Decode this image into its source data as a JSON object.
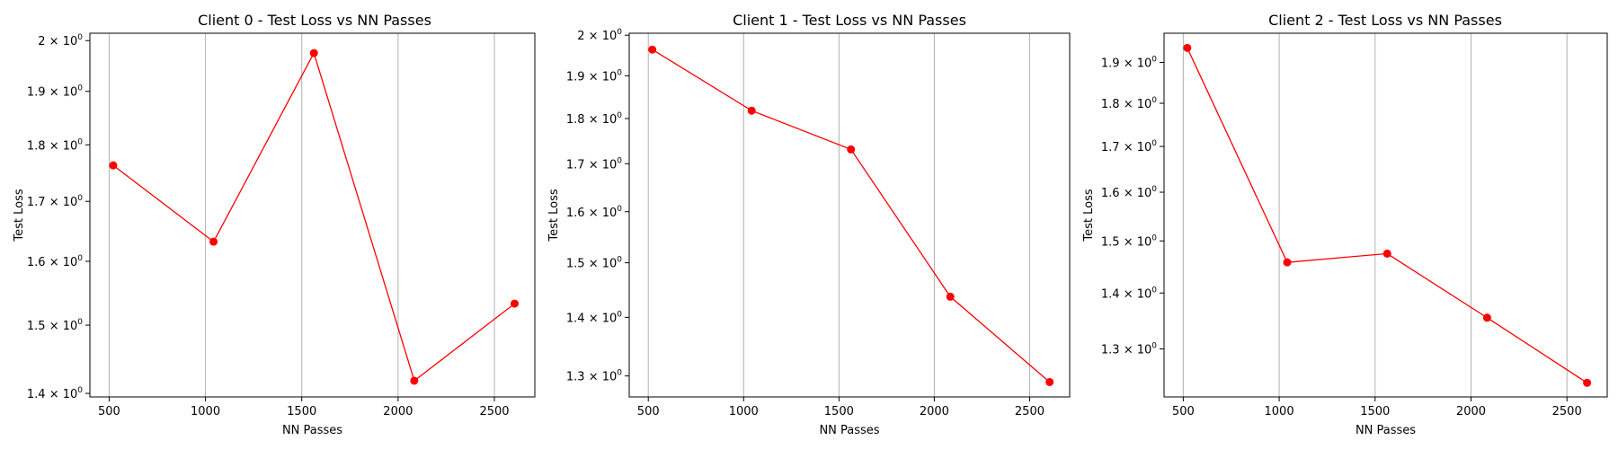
{
  "chart_data": [
    {
      "type": "line",
      "title": "Client 0 - Test Loss vs NN Passes",
      "xlabel": "NN Passes",
      "ylabel": "Test Loss",
      "y_scale": "log",
      "x": [
        521,
        1042,
        1563,
        2084,
        2605
      ],
      "series": [
        {
          "values": [
            1.763,
            1.632,
            1.975,
            1.418,
            1.533
          ],
          "color": "#ff0000",
          "marker": "circle"
        }
      ],
      "xlim": [
        400,
        2710
      ],
      "ylim": [
        1.395,
        2.015
      ],
      "xticks": [
        500,
        1000,
        1500,
        2000,
        2500
      ],
      "xtick_labels": [
        "500",
        "1000",
        "1500",
        "2000",
        "2500"
      ],
      "yticks": [
        1.4,
        1.5,
        1.6,
        1.7,
        1.8,
        1.9,
        2.0
      ],
      "ytick_labels": [
        {
          "base": "1.4 × 10",
          "exp": "0"
        },
        {
          "base": "1.5 × 10",
          "exp": "0"
        },
        {
          "base": "1.6 × 10",
          "exp": "0"
        },
        {
          "base": "1.7 × 10",
          "exp": "0"
        },
        {
          "base": "1.8 × 10",
          "exp": "0"
        },
        {
          "base": "1.9 × 10",
          "exp": "0"
        },
        {
          "base": "2 × 10",
          "exp": "0"
        }
      ],
      "grid": "x"
    },
    {
      "type": "line",
      "title": "Client 1 - Test Loss vs NN Passes",
      "xlabel": "NN Passes",
      "ylabel": "Test Loss",
      "y_scale": "log",
      "x": [
        521,
        1042,
        1563,
        2084,
        2605
      ],
      "series": [
        {
          "values": [
            1.964,
            1.818,
            1.731,
            1.437,
            1.29
          ],
          "color": "#ff0000",
          "marker": "circle"
        }
      ],
      "xlim": [
        400,
        2710
      ],
      "ylim": [
        1.266,
        2.005
      ],
      "xticks": [
        500,
        1000,
        1500,
        2000,
        2500
      ],
      "xtick_labels": [
        "500",
        "1000",
        "1500",
        "2000",
        "2500"
      ],
      "yticks": [
        1.3,
        1.4,
        1.5,
        1.6,
        1.7,
        1.8,
        1.9,
        2.0
      ],
      "ytick_labels": [
        {
          "base": "1.3 × 10",
          "exp": "0"
        },
        {
          "base": "1.4 × 10",
          "exp": "0"
        },
        {
          "base": "1.5 × 10",
          "exp": "0"
        },
        {
          "base": "1.6 × 10",
          "exp": "0"
        },
        {
          "base": "1.7 × 10",
          "exp": "0"
        },
        {
          "base": "1.8 × 10",
          "exp": "0"
        },
        {
          "base": "1.9 × 10",
          "exp": "0"
        },
        {
          "base": "2 × 10",
          "exp": "0"
        }
      ],
      "grid": "x"
    },
    {
      "type": "line",
      "title": "Client 2 - Test Loss vs NN Passes",
      "xlabel": "NN Passes",
      "ylabel": "Test Loss",
      "y_scale": "log",
      "x": [
        521,
        1042,
        1563,
        2084,
        2605
      ],
      "series": [
        {
          "values": [
            1.937,
            1.458,
            1.475,
            1.355,
            1.243
          ],
          "color": "#ff0000",
          "marker": "circle"
        }
      ],
      "xlim": [
        400,
        2710
      ],
      "ylim": [
        1.22,
        1.975
      ],
      "xticks": [
        500,
        1000,
        1500,
        2000,
        2500
      ],
      "xtick_labels": [
        "500",
        "1000",
        "1500",
        "2000",
        "2500"
      ],
      "yticks": [
        1.3,
        1.4,
        1.5,
        1.6,
        1.7,
        1.8,
        1.9
      ],
      "ytick_labels": [
        {
          "base": "1.3 × 10",
          "exp": "0"
        },
        {
          "base": "1.4 × 10",
          "exp": "0"
        },
        {
          "base": "1.5 × 10",
          "exp": "0"
        },
        {
          "base": "1.6 × 10",
          "exp": "0"
        },
        {
          "base": "1.7 × 10",
          "exp": "0"
        },
        {
          "base": "1.8 × 10",
          "exp": "0"
        },
        {
          "base": "1.9 × 10",
          "exp": "0"
        }
      ],
      "grid": "x"
    }
  ]
}
